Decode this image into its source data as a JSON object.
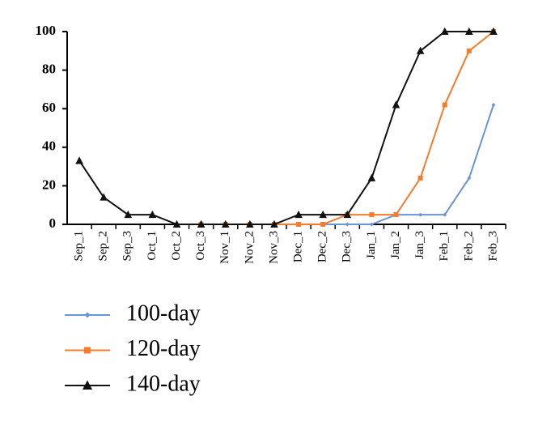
{
  "chart_data": {
    "type": "line",
    "categories": [
      "Sep_1",
      "Sep_2",
      "Sep_3",
      "Oct_1",
      "Oct_2",
      "Oct_3",
      "Nov_1",
      "Nov_2",
      "Nov_3",
      "Dec_1",
      "Dec_2",
      "Dec_3",
      "Jan_1",
      "Jan_2",
      "Jan_3",
      "Feb_1",
      "Feb_2",
      "Feb_3"
    ],
    "series": [
      {
        "name": "100-day",
        "color": "#6b93d6",
        "marker": "diamond",
        "values": [
          null,
          null,
          null,
          null,
          null,
          0,
          0,
          0,
          0,
          0,
          0,
          0,
          0,
          5,
          5,
          5,
          24,
          62
        ]
      },
      {
        "name": "120-day",
        "color": "#f47c2c",
        "marker": "square",
        "values": [
          null,
          null,
          null,
          null,
          null,
          0,
          0,
          0,
          0,
          0,
          0,
          5,
          5,
          5,
          24,
          62,
          90,
          100
        ]
      },
      {
        "name": "140-day",
        "color": "#111111",
        "marker": "triangle",
        "values": [
          33,
          14,
          5,
          5,
          0,
          0,
          0,
          0,
          0,
          5,
          5,
          5,
          24,
          62,
          90,
          100,
          100,
          100
        ]
      }
    ],
    "ylim": [
      0,
      100
    ],
    "yticks": [
      0,
      20,
      40,
      60,
      80,
      100
    ],
    "grid": false,
    "legend": "bottom-left"
  }
}
